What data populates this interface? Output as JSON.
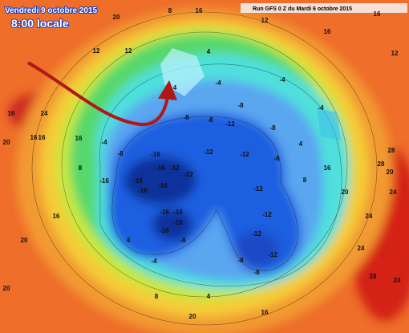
{
  "map": {
    "date": "Vendredi 9 octobre 2015",
    "time": "8:00 locale",
    "run": "Run GFS 0 Z du Mardi 6 octobre 2015",
    "labels": [
      "16",
      "24",
      "16",
      "16",
      "20",
      "16",
      "20",
      "12",
      "12",
      "8",
      "16",
      "12",
      "16",
      "16",
      "12",
      "4",
      "4",
      "-4",
      "-4",
      "-4",
      "-8",
      "-12",
      "-8",
      "-8",
      "-8",
      "-8",
      "-12",
      "-12",
      "-12",
      "-16",
      "-16",
      "-12",
      "-16",
      "-16",
      "-16",
      "-16",
      "-8",
      "-4",
      "-12",
      "-12",
      "-12",
      "-12",
      "-16",
      "-16",
      "-16",
      "-16",
      "-8",
      "-4",
      "4",
      "-8",
      "-8",
      "28",
      "28",
      "24",
      "24",
      "24",
      "24",
      "28",
      "20",
      "20",
      "16",
      "4",
      "8",
      "20",
      "20",
      "16",
      "8",
      "8",
      "4",
      "16",
      "20"
    ]
  }
}
